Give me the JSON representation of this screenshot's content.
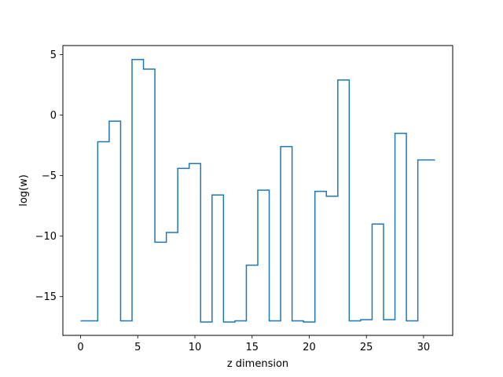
{
  "chart_data": {
    "type": "line",
    "drawstyle": "steps-mid",
    "xlabel": "z dimension",
    "ylabel": "log(w)",
    "xlim": [
      -1.55,
      32.55
    ],
    "ylim": [
      -18.2,
      5.75
    ],
    "xticks": [
      0,
      5,
      10,
      15,
      20,
      25,
      30
    ],
    "yticks": [
      -15,
      -10,
      -5,
      0,
      5
    ],
    "ytick_labels": [
      "−15",
      "−10",
      "−5",
      "0",
      "5"
    ],
    "grid": false,
    "colors": {
      "line": "#1f77b4"
    },
    "series": [
      {
        "x": [
          0,
          1,
          2,
          3,
          4,
          5,
          6,
          7,
          8,
          9,
          10,
          11,
          12,
          13,
          14,
          15,
          16,
          17,
          18,
          19,
          20,
          21,
          22,
          23,
          24,
          25,
          26,
          27,
          28,
          29,
          30,
          31
        ],
        "values": [
          -17.0,
          -17.0,
          -2.2,
          -0.5,
          -17.0,
          4.6,
          3.8,
          -10.5,
          -9.7,
          -4.4,
          -4.0,
          -17.1,
          -6.6,
          -17.1,
          -17.0,
          -12.4,
          -6.2,
          -17.0,
          -2.6,
          -17.0,
          -17.1,
          -6.3,
          -6.7,
          2.9,
          -17.0,
          -16.9,
          -9.0,
          -16.9,
          -1.5,
          -17.0,
          -3.7,
          -3.7
        ]
      }
    ]
  }
}
